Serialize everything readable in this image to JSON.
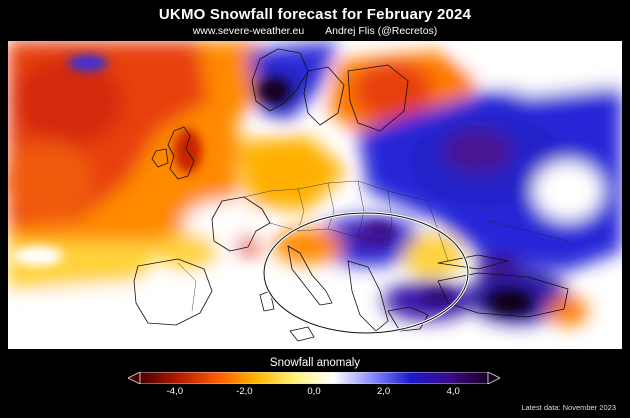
{
  "header": {
    "title": "UKMO Snowfall forecast for February 2024",
    "website": "www.severe-weather.eu",
    "author": "Andrej Flis (@Recretos)"
  },
  "legend": {
    "title": "Snowfall anomaly",
    "ticks": [
      {
        "label": "-4,0",
        "value": -4.0
      },
      {
        "label": "-2,0",
        "value": -2.0
      },
      {
        "label": "0,0",
        "value": 0.0
      },
      {
        "label": "2,0",
        "value": 2.0
      },
      {
        "label": "4,0",
        "value": 4.0
      }
    ],
    "range": [
      -5.0,
      5.0
    ],
    "colors": [
      "#4a0000",
      "#b31a00",
      "#ff5a00",
      "#ffb400",
      "#fff27a",
      "#ffffff",
      "#8a8aff",
      "#1a1acc",
      "#3d0a8a",
      "#160020"
    ]
  },
  "footer": {
    "note": "Latest data: November 2023"
  },
  "map": {
    "region": "Europe",
    "annotation": "ellipse-highlight-balkans",
    "colors": {
      "deficit_strong": "#e03a10",
      "deficit_medium": "#ff8a00",
      "deficit_weak": "#ffd23a",
      "neutral": "#ffffff",
      "surplus_weak": "#7a7aff",
      "surplus_medium": "#2626d8",
      "surplus_strong": "#4a1290",
      "surplus_max": "#1a0028"
    }
  }
}
